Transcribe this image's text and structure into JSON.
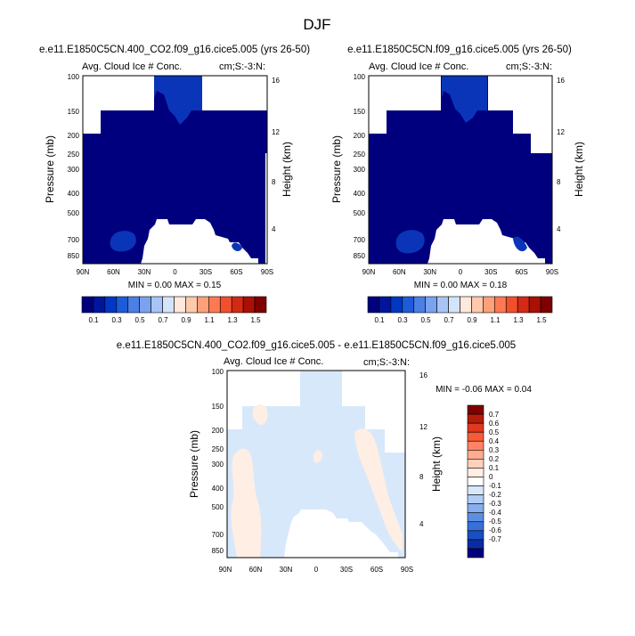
{
  "figure_title": "DJF",
  "chart_data": [
    {
      "type": "heatmap",
      "title": "e.e11.E1850C5CN.400_CO2.f09_g16.cice5.005 (yrs 26-50)",
      "subtitle_left": "Avg. Cloud Ice # Conc.",
      "subtitle_right": "cm;S:-3:N:",
      "ylabel": "Pressure (mb)",
      "ylabel_right": "Height (km)",
      "x_ticks": [
        "90N",
        "60N",
        "30N",
        "0",
        "30S",
        "60S",
        "90S"
      ],
      "y_ticks": [
        "100",
        "150",
        "200",
        "250",
        "300",
        "400",
        "500",
        "700",
        "850"
      ],
      "y_ticks_right": [
        "16",
        "12",
        "8",
        "4"
      ],
      "stats": "MIN =  0.00  MAX =  0.15",
      "colorbar_labels": [
        "0.1",
        "0.3",
        "0.5",
        "0.7",
        "0.9",
        "1.1",
        "1.3",
        "1.5"
      ]
    },
    {
      "type": "heatmap",
      "title": "e.e11.E1850C5CN.f09_g16.cice5.005 (yrs 26-50)",
      "subtitle_left": "Avg. Cloud Ice # Conc.",
      "subtitle_right": "cm;S:-3:N:",
      "ylabel": "Pressure (mb)",
      "ylabel_right": "Height (km)",
      "x_ticks": [
        "90N",
        "60N",
        "30N",
        "0",
        "30S",
        "60S",
        "90S"
      ],
      "y_ticks": [
        "100",
        "150",
        "200",
        "250",
        "300",
        "400",
        "500",
        "700",
        "850"
      ],
      "y_ticks_right": [
        "16",
        "12",
        "8",
        "4"
      ],
      "stats": "MIN =  0.00  MAX =  0.18",
      "colorbar_labels": [
        "0.1",
        "0.3",
        "0.5",
        "0.7",
        "0.9",
        "1.1",
        "1.3",
        "1.5"
      ]
    },
    {
      "type": "heatmap",
      "title": "e.e11.E1850C5CN.400_CO2.f09_g16.cice5.005 - e.e11.E1850C5CN.f09_g16.cice5.005",
      "subtitle_left": "Avg. Cloud Ice # Conc.",
      "subtitle_right": "cm;S:-3:N:",
      "ylabel": "Pressure (mb)",
      "ylabel_right": "Height (km)",
      "x_ticks": [
        "90N",
        "60N",
        "30N",
        "0",
        "30S",
        "60S",
        "90S"
      ],
      "y_ticks": [
        "100",
        "150",
        "200",
        "250",
        "300",
        "400",
        "500",
        "700",
        "850"
      ],
      "y_ticks_right": [
        "16",
        "12",
        "8",
        "4"
      ],
      "stats": "MIN = -0.06  MAX =  0.04",
      "colorbar_labels": [
        "0.7",
        "0.6",
        "0.5",
        "0.4",
        "0.3",
        "0.2",
        "0.1",
        "0",
        "-0.1",
        "-0.2",
        "-0.3",
        "-0.4",
        "-0.5",
        "-0.6",
        "-0.7"
      ]
    }
  ],
  "colors": {
    "absolute_scale": [
      "#00007f",
      "#00159e",
      "#0038c4",
      "#1e5bd8",
      "#4b7fe6",
      "#7aa2ef",
      "#a8c4f5",
      "#d3e4fb",
      "#ffe9dc",
      "#ffc9ab",
      "#ffa07a",
      "#ff7a52",
      "#f2502d",
      "#d42a15",
      "#aa1005",
      "#7f0000"
    ],
    "diff_scale": [
      "#7f0000",
      "#b51d0a",
      "#e0391f",
      "#f95a38",
      "#ff8463",
      "#ffab8f",
      "#ffd0ba",
      "#ffeee3",
      "#ffffff",
      "#d8e8fb",
      "#b0cdf5",
      "#87afed",
      "#5c8fe4",
      "#3770d8",
      "#1a4ec3",
      "#0b2ca1",
      "#00007f"
    ],
    "no_data": "#ffffff"
  }
}
